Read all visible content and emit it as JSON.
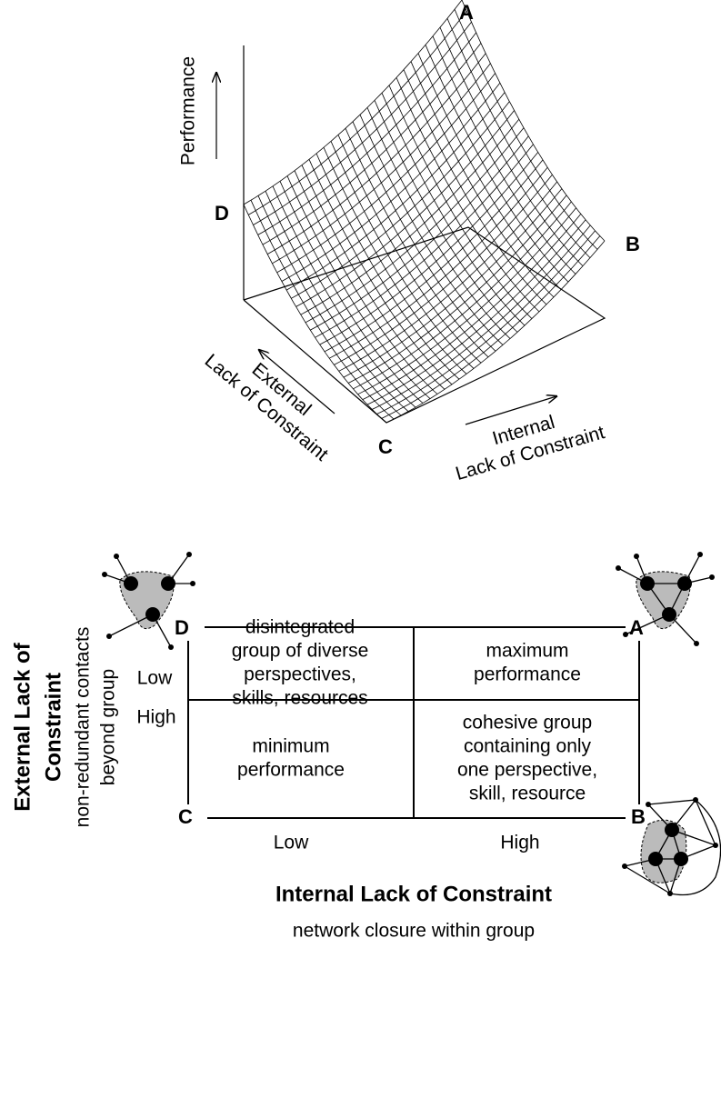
{
  "surface": {
    "corners": {
      "A": "A",
      "B": "B",
      "C": "C",
      "D": "D"
    },
    "y_axis_label": "Performance",
    "external_label": [
      "External",
      "Lack of Constraint"
    ],
    "internal_label": [
      "Internal",
      "Lack of Constraint"
    ]
  },
  "matrix": {
    "corners": {
      "A": "A",
      "B": "B",
      "C": "C",
      "D": "D"
    },
    "cells": {
      "top_left": [
        "disintegrated",
        "group of diverse",
        "perspectives,",
        "skills, resources"
      ],
      "top_right": [
        "maximum",
        "performance"
      ],
      "bottom_left": [
        "minimum",
        "performance"
      ],
      "bottom_right": [
        "cohesive group",
        "containing only",
        "one perspective,",
        "skill, resource"
      ]
    },
    "y_levels": {
      "high": "High",
      "low": "Low"
    },
    "x_levels": {
      "low": "Low",
      "high": "High"
    },
    "x_title": "Internal Lack of Constraint",
    "x_subtitle": "network closure within group",
    "y_title": [
      "External Lack of",
      "Constraint"
    ],
    "y_subtitle": [
      "non-redundant contacts",
      "beyond group"
    ]
  }
}
